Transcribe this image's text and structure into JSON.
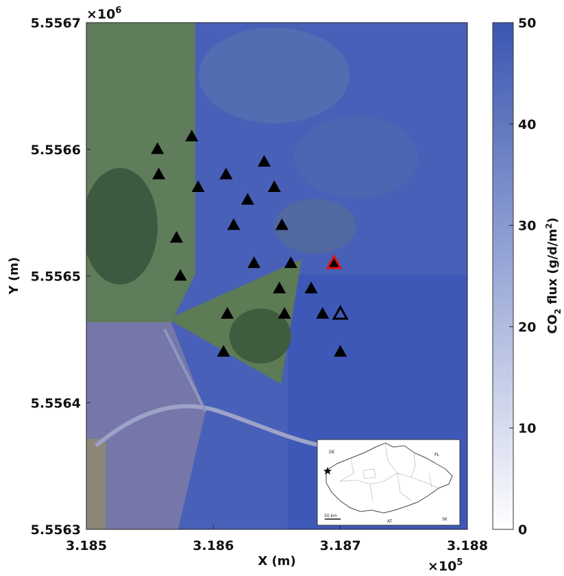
{
  "map": {
    "x_exponent": {
      "base": "×10",
      "power": "5"
    },
    "y_exponent": {
      "base": "×10",
      "power": "6"
    },
    "xlabel": "X (m)",
    "ylabel": "Y (m)",
    "x_ticks": [
      "3.185",
      "3.186",
      "3.187",
      "3.188"
    ],
    "y_ticks": [
      "5.5567",
      "5.5566",
      "5.5565",
      "5.5564",
      "5.5563"
    ],
    "x_range": [
      3.185,
      3.188
    ],
    "y_range": [
      5.5563,
      5.5567
    ]
  },
  "colorbar": {
    "label_prefix": "CO",
    "label_sub": "2",
    "label_mid": " flux (g/d/m",
    "label_sup": "2",
    "label_suffix": ")",
    "ticks": [
      "0",
      "10",
      "20",
      "30",
      "40",
      "50"
    ],
    "range": [
      0,
      50
    ],
    "color_low": "#ffffff",
    "color_high": "#3a56b0"
  },
  "stations": [
    {
      "x": 3.18556,
      "y": 5.5566,
      "type": "filled"
    },
    {
      "x": 3.18583,
      "y": 5.55661,
      "type": "filled"
    },
    {
      "x": 3.18557,
      "y": 5.55658,
      "type": "filled"
    },
    {
      "x": 3.18588,
      "y": 5.55657,
      "type": "filled"
    },
    {
      "x": 3.1861,
      "y": 5.55658,
      "type": "filled"
    },
    {
      "x": 3.1864,
      "y": 5.55659,
      "type": "filled"
    },
    {
      "x": 3.18627,
      "y": 5.55656,
      "type": "filled"
    },
    {
      "x": 3.18648,
      "y": 5.55657,
      "type": "filled"
    },
    {
      "x": 3.18616,
      "y": 5.55654,
      "type": "filled"
    },
    {
      "x": 3.18654,
      "y": 5.55654,
      "type": "filled"
    },
    {
      "x": 3.18571,
      "y": 5.55653,
      "type": "filled"
    },
    {
      "x": 3.18632,
      "y": 5.55651,
      "type": "filled"
    },
    {
      "x": 3.18661,
      "y": 5.55651,
      "type": "filled"
    },
    {
      "x": 3.18574,
      "y": 5.5565,
      "type": "filled"
    },
    {
      "x": 3.18677,
      "y": 5.55649,
      "type": "filled"
    },
    {
      "x": 3.18652,
      "y": 5.55649,
      "type": "filled"
    },
    {
      "x": 3.18611,
      "y": 5.55647,
      "type": "filled"
    },
    {
      "x": 3.18656,
      "y": 5.55647,
      "type": "filled"
    },
    {
      "x": 3.18686,
      "y": 5.55647,
      "type": "filled"
    },
    {
      "x": 3.18608,
      "y": 5.55644,
      "type": "filled"
    },
    {
      "x": 3.187,
      "y": 5.55644,
      "type": "filled"
    },
    {
      "x": 3.18695,
      "y": 5.55651,
      "type": "red"
    },
    {
      "x": 3.187,
      "y": 5.55647,
      "type": "open"
    }
  ],
  "inset": {
    "labels": {
      "de": "DE",
      "pl": "PL",
      "at": "AT",
      "sk": "SK"
    },
    "scale_label": "50 km"
  }
}
